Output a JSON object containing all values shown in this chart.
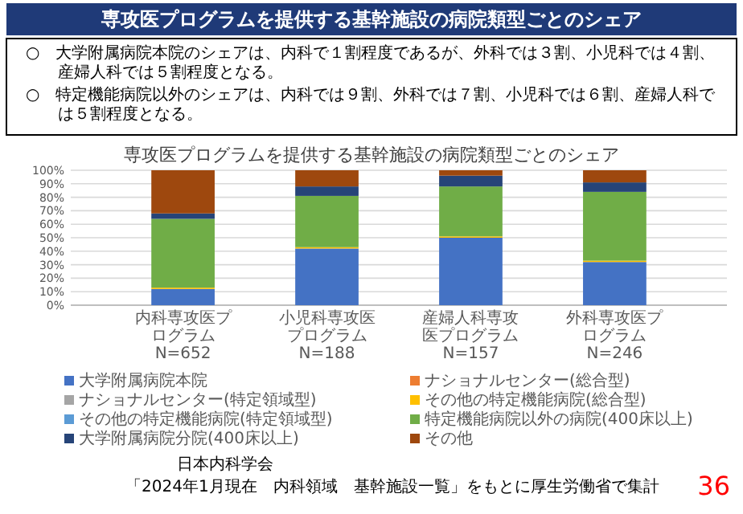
{
  "chart_data": {
    "type": "bar",
    "stacked": true,
    "title": "専攻医プログラムを提供する基幹施設の病院類型ごとのシェア",
    "categories": [
      "内科専攻医プログラム\nN=652",
      "小児科専攻医プログラム\nN=188",
      "産婦人科専攻医プログラム\nN=157",
      "外科専攻医プログラム\nN=246"
    ],
    "series": [
      {
        "name": "大学附属病院本院",
        "color": "#4472c4",
        "values": [
          12,
          42,
          50,
          32
        ]
      },
      {
        "name": "ナショナルセンター(総合型)",
        "color": "#ed7d31",
        "values": [
          0,
          0,
          0,
          0
        ]
      },
      {
        "name": "ナショナルセンター(特定領域型)",
        "color": "#a5a5a5",
        "values": [
          0,
          0,
          0,
          0
        ]
      },
      {
        "name": "その他の特定機能病院(総合型)",
        "color": "#ffc000",
        "values": [
          1,
          1,
          1,
          1
        ]
      },
      {
        "name": "その他の特定機能病院(特定領域型)",
        "color": "#5b9bd5",
        "values": [
          0,
          0,
          0,
          0
        ]
      },
      {
        "name": "特定機能病院以外の病院(400床以上)",
        "color": "#70ad47",
        "values": [
          51,
          38,
          37,
          51
        ]
      },
      {
        "name": "大学附属病院分院(400床以上)",
        "color": "#264478",
        "values": [
          4,
          7,
          8,
          7
        ]
      },
      {
        "name": "その他",
        "color": "#9e480e",
        "values": [
          32,
          12,
          4,
          9
        ]
      }
    ],
    "ylim": [
      0,
      100
    ],
    "yticks": [
      {
        "value": 0,
        "label": "0%"
      },
      {
        "value": 10,
        "label": "10%"
      },
      {
        "value": 20,
        "label": "20%"
      },
      {
        "value": 30,
        "label": "30%"
      },
      {
        "value": 40,
        "label": "40%"
      },
      {
        "value": 50,
        "label": "50%"
      },
      {
        "value": 60,
        "label": "60%"
      },
      {
        "value": 70,
        "label": "70%"
      },
      {
        "value": 80,
        "label": "80%"
      },
      {
        "value": 90,
        "label": "90%"
      },
      {
        "value": 100,
        "label": "100%"
      }
    ],
    "grid": "y",
    "legend": "bottom",
    "annotations": [
      "専攻医プログラムを提供する基幹施設の病院類型ごとのシェア",
      "○　大学附属病院本院のシェアは、内科で１割程度であるが、外科では３割、小児科では４割、産婦人科では５割程度となる。",
      "○　特定機能病院以外のシェアは、内科では９割、外科では７割、小児科では６割、産婦人科では５割程度となる。",
      "日本内科学会",
      "「2024年1月現在　内科領域　基幹施設一覧」をもとに厚生労働省で集計",
      "36"
    ]
  }
}
